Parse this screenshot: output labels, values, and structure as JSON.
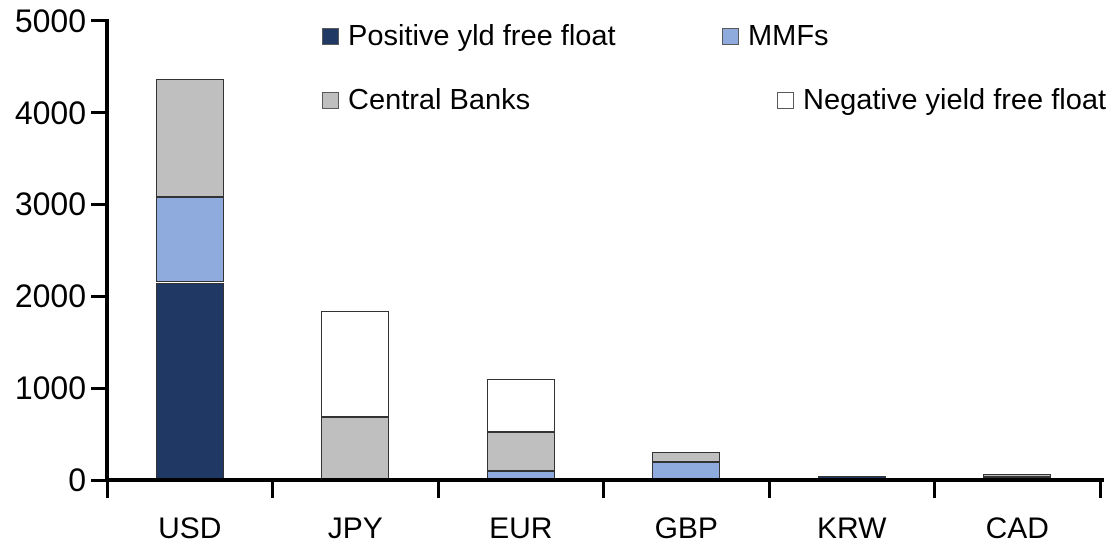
{
  "chart_data": {
    "type": "bar",
    "stacked": true,
    "title": "",
    "xlabel": "",
    "ylabel": "",
    "categories": [
      "USD",
      "JPY",
      "EUR",
      "GBP",
      "KRW",
      "CAD"
    ],
    "series": [
      {
        "name": "Positive yld free float",
        "color": "#1F3864",
        "values": [
          2150,
          0,
          0,
          0,
          40,
          30
        ]
      },
      {
        "name": "MMFs",
        "color": "#8FAADC",
        "values": [
          930,
          0,
          100,
          200,
          0,
          0
        ]
      },
      {
        "name": "Central Banks",
        "color": "#BFBFBF",
        "values": [
          1280,
          690,
          425,
          110,
          0,
          30
        ]
      },
      {
        "name": "Negative yield free float",
        "color": "#FFFFFF",
        "values": [
          0,
          1150,
          575,
          0,
          0,
          0
        ]
      }
    ],
    "ylim": [
      0,
      5000
    ],
    "ytick_step": 1000,
    "yticks": [
      "0",
      "1000",
      "2000",
      "3000",
      "4000",
      "5000"
    ],
    "grid": false,
    "legend_position": "top",
    "legend_rows": [
      [
        "Positive yld free float",
        "MMFs"
      ],
      [
        "Central Banks",
        "Negative yield free float"
      ]
    ],
    "bar_outline_color": "#333333",
    "axis_color": "#000000",
    "background_color": "#FFFFFF"
  }
}
